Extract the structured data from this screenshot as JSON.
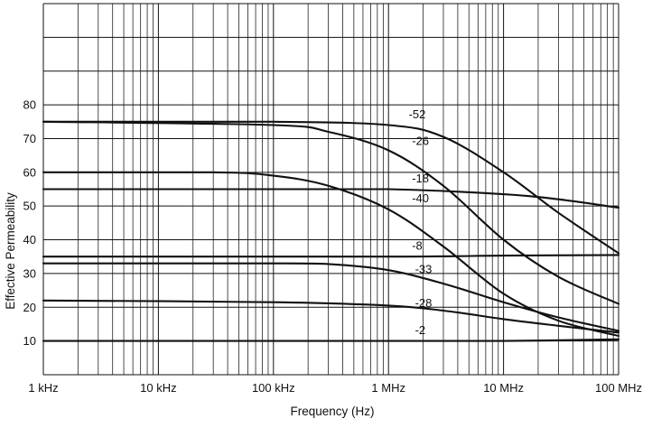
{
  "chart_data": {
    "type": "line",
    "title": "",
    "xlabel": "Frequency (Hz)",
    "ylabel": "Effective Permeability",
    "x_scale": "log",
    "xlim": [
      1000,
      100000000
    ],
    "ylim": [
      0,
      110
    ],
    "grid": true,
    "legend": "none",
    "x_ticks": [
      {
        "value": 1000,
        "label": "1 kHz"
      },
      {
        "value": 10000,
        "label": "10 kHz"
      },
      {
        "value": 100000,
        "label": "100 kHz"
      },
      {
        "value": 1000000,
        "label": "1 MHz"
      },
      {
        "value": 10000000,
        "label": "10 MHz"
      },
      {
        "value": 100000000,
        "label": "100 MHz"
      }
    ],
    "y_ticks": [
      {
        "value": 10,
        "label": "10"
      },
      {
        "value": 20,
        "label": "20"
      },
      {
        "value": 30,
        "label": "30"
      },
      {
        "value": 40,
        "label": "40"
      },
      {
        "value": 50,
        "label": "50"
      },
      {
        "value": 60,
        "label": "60"
      },
      {
        "value": 70,
        "label": "70"
      },
      {
        "value": 80,
        "label": "80"
      }
    ],
    "series": [
      {
        "name": "-52",
        "points": [
          [
            1000,
            75
          ],
          [
            100000,
            75
          ],
          [
            1000000,
            74
          ],
          [
            3000000,
            70.5
          ],
          [
            10000000,
            60
          ],
          [
            30000000,
            48
          ],
          [
            100000000,
            36
          ]
        ],
        "label_at": [
          1500000,
          75
        ]
      },
      {
        "name": "-26",
        "points": [
          [
            1000,
            75
          ],
          [
            100000,
            74
          ],
          [
            300000,
            72
          ],
          [
            1000000,
            66.5
          ],
          [
            3000000,
            56
          ],
          [
            10000000,
            40
          ],
          [
            30000000,
            29
          ],
          [
            100000000,
            21
          ]
        ],
        "label_at": [
          1600000,
          67
        ]
      },
      {
        "name": "-18",
        "points": [
          [
            1000,
            55
          ],
          [
            100000,
            55
          ],
          [
            1000000,
            55
          ],
          [
            10000000,
            53.5
          ],
          [
            30000000,
            52
          ],
          [
            100000000,
            49.5
          ]
        ],
        "label_at": [
          1600000,
          56
        ]
      },
      {
        "name": "-40",
        "points": [
          [
            1000,
            60
          ],
          [
            30000,
            60
          ],
          [
            100000,
            59
          ],
          [
            300000,
            56
          ],
          [
            1000000,
            49
          ],
          [
            3000000,
            38
          ],
          [
            10000000,
            24
          ],
          [
            30000000,
            16
          ],
          [
            100000000,
            11.5
          ]
        ],
        "label_at": [
          1600000,
          50
        ]
      },
      {
        "name": "-8",
        "points": [
          [
            1000,
            35
          ],
          [
            1000000,
            35
          ],
          [
            10000000,
            35.3
          ],
          [
            100000000,
            35.5
          ]
        ],
        "label_at": [
          1600000,
          36
        ]
      },
      {
        "name": "-33",
        "points": [
          [
            1000,
            33
          ],
          [
            100000,
            33
          ],
          [
            300000,
            32.8
          ],
          [
            1000000,
            31
          ],
          [
            3000000,
            27
          ],
          [
            10000000,
            21.5
          ],
          [
            30000000,
            17
          ],
          [
            100000000,
            13
          ]
        ],
        "label_at": [
          1700000,
          29
        ]
      },
      {
        "name": "-28",
        "points": [
          [
            1000,
            22
          ],
          [
            100000,
            21.5
          ],
          [
            1000000,
            20.5
          ],
          [
            3000000,
            19
          ],
          [
            10000000,
            16.5
          ],
          [
            30000000,
            14.5
          ],
          [
            100000000,
            12.5
          ]
        ],
        "label_at": [
          1700000,
          19
        ]
      },
      {
        "name": "-2",
        "points": [
          [
            1000,
            10
          ],
          [
            1000000,
            10
          ],
          [
            10000000,
            10
          ],
          [
            100000000,
            10.5
          ]
        ],
        "label_at": [
          1700000,
          11
        ]
      }
    ]
  }
}
